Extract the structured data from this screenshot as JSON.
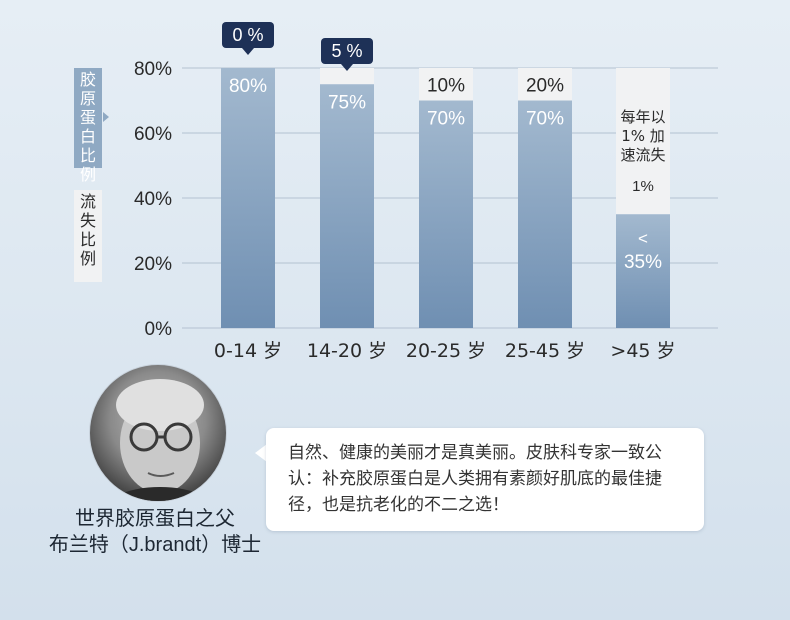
{
  "chart_data": {
    "type": "bar",
    "stacked": true,
    "categories": [
      "0-14 岁",
      "14-20 岁",
      "20-25 岁",
      "25-45 岁",
      ">45 岁"
    ],
    "series": [
      {
        "name": "胶原蛋白比例",
        "values": [
          80,
          75,
          70,
          70,
          35
        ],
        "labels": [
          "80%",
          "75%",
          "70%",
          "70%",
          "<35%"
        ]
      },
      {
        "name": "流失比例",
        "values": [
          0,
          5,
          10,
          20,
          45
        ],
        "labels": [
          "0 %",
          "5 %",
          "10%",
          "20%",
          "每年以1% 加速流失 1%"
        ]
      }
    ],
    "ylim": [
      0,
      80
    ],
    "yticks": [
      "0%",
      "20%",
      "40%",
      "60%",
      "80%"
    ],
    "grid": true,
    "legend_placement": "left"
  },
  "legend": {
    "protein": [
      "胶",
      "原",
      "蛋",
      "白",
      "比",
      "例"
    ],
    "loss": [
      "流",
      "失",
      "比",
      "例"
    ]
  },
  "callouts": {
    "bar0": "0 %",
    "bar1": "5 %",
    "bar4_loss_lines": [
      "每年以",
      "1% 加",
      "速流失"
    ],
    "bar4_loss_bottom": "1%",
    "bar4_protein_lines": [
      "<",
      "35%"
    ]
  },
  "person": {
    "title": "世界胶原蛋白之父",
    "name": "布兰特（J.brandt）博士"
  },
  "quote": "自然、健康的美丽才是真美丽。皮肤科专家一致公认：补充胶原蛋白是人类拥有素颜好肌底的最佳捷径，也是抗老化的不二之选！",
  "colors": {
    "protein_top": "#a3b9cf",
    "protein_bottom": "#6f8fb2",
    "loss": "#f1f2f3",
    "callout": "#1e3157"
  }
}
